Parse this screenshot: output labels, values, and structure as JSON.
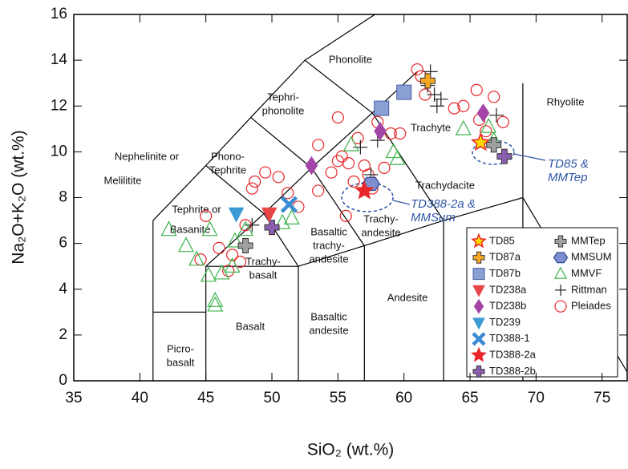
{
  "chart_data": {
    "type": "scatter",
    "xlabel": "SiO₂ (wt.%)",
    "ylabel": "Na₂O+K₂O (wt.%)",
    "xlim": [
      35,
      76.9
    ],
    "ylim": [
      0,
      16
    ],
    "xticks": [
      35,
      40,
      45,
      50,
      55,
      60,
      65,
      70,
      75
    ],
    "yticks": [
      0,
      2,
      4,
      6,
      8,
      10,
      12,
      14,
      16
    ],
    "legend": "lower right",
    "fields": [
      [
        "Phonolite"
      ],
      [
        "Tephri-",
        "phonolite"
      ],
      [
        "Trachyte"
      ],
      [
        "Rhyolite"
      ],
      [
        "Nephelinite or"
      ],
      [
        "Melilitite"
      ],
      [
        "Phono-",
        "Tephrite"
      ],
      [
        "Tephrite or"
      ],
      [
        "Basanite"
      ],
      [
        "Trachydacite"
      ],
      [
        "Basaltic",
        "trachy-",
        "andesite"
      ],
      [
        "Trachy-",
        "basalt"
      ],
      [
        "Trachy-",
        "andesite"
      ],
      [
        "Andesite"
      ],
      [
        "Basalt"
      ],
      [
        "Basaltic",
        "andesite"
      ],
      [
        "Picro-",
        "basalt"
      ]
    ],
    "annotations": [
      [
        "TD85 &",
        "MMTep"
      ],
      [
        "TD388-2a &",
        "MMSum"
      ]
    ],
    "series": [
      {
        "name": "TD85",
        "color": "#e8262a",
        "marker": "star-yellow",
        "x": [
          65.8
        ],
        "y": [
          10.4
        ]
      },
      {
        "name": "TD87a",
        "color": "#f5a623",
        "marker": "plus",
        "x": [
          61.8
        ],
        "y": [
          13.1
        ]
      },
      {
        "name": "TD87b",
        "color": "#8a9fd4",
        "marker": "square",
        "x": [
          58.3,
          60
        ],
        "y": [
          11.9,
          12.6
        ]
      },
      {
        "name": "TD238a",
        "color": "#e8474a",
        "marker": "tri-down",
        "x": [
          49.8
        ],
        "y": [
          7.3
        ]
      },
      {
        "name": "TD238b",
        "color": "#a245a6",
        "marker": "diamond",
        "x": [
          53,
          58.2,
          66
        ],
        "y": [
          9.4,
          10.9,
          11.7
        ]
      },
      {
        "name": "TD239",
        "color": "#3b9ad4",
        "marker": "tri-down",
        "x": [
          47.3
        ],
        "y": [
          7.3
        ]
      },
      {
        "name": "TD388-1",
        "color": "#3b8ad4",
        "marker": "x",
        "x": [
          51.3
        ],
        "y": [
          7.7
        ]
      },
      {
        "name": "TD388-2a",
        "color": "#e8262a",
        "marker": "star",
        "x": [
          57
        ],
        "y": [
          8.3
        ]
      },
      {
        "name": "TD388-2b",
        "color": "#8b5fb0",
        "marker": "plus",
        "x": [
          50,
          67.6
        ],
        "y": [
          6.7,
          9.8
        ]
      },
      {
        "name": "MMTep",
        "color": "#a0a0a0",
        "marker": "plus",
        "x": [
          66.8,
          48
        ],
        "y": [
          10.3,
          5.9
        ]
      },
      {
        "name": "MMSUM",
        "color": "#7d8fd0",
        "marker": "hexagon",
        "x": [
          57.5
        ],
        "y": [
          8.6
        ]
      },
      {
        "name": "MMVF",
        "color": "#3cb44b",
        "marker": "tri-up-open",
        "x": [
          42.2,
          43.5,
          44.3,
          45.3,
          45.7,
          45.7,
          45.2,
          46.2,
          47,
          47.2,
          48,
          50.8,
          51.5,
          56,
          59.2,
          59.5,
          64.5,
          66.4,
          66.8
        ],
        "y": [
          6.6,
          5.9,
          5.3,
          6.6,
          3.5,
          3.3,
          4.6,
          4.7,
          5,
          6.1,
          6.6,
          6.9,
          7.1,
          10.3,
          10,
          9.7,
          11,
          11.1,
          10.5
        ]
      },
      {
        "name": "Rittman",
        "color": "#222222",
        "marker": "thin-plus",
        "x": [
          62,
          62.3,
          62.5,
          61.8,
          62.8,
          67,
          58,
          56.7,
          48.5,
          57.5
        ],
        "y": [
          13.5,
          12.5,
          12,
          12.9,
          12.3,
          11.6,
          10.5,
          10.2,
          6.8,
          9
        ]
      },
      {
        "name": "Pleiades",
        "color": "#e8262a",
        "marker": "circle-open",
        "x": [
          44.6,
          45,
          46,
          46.7,
          47,
          47.6,
          48,
          48.5,
          48.7,
          49.5,
          50.5,
          51.2,
          52,
          53.5,
          54.5,
          55,
          55.3,
          55.8,
          56.2,
          56.5,
          57,
          57.3,
          57.6,
          58,
          58.5,
          59,
          59.7,
          61,
          61.3,
          61.6,
          63.8,
          64.5,
          65.5,
          65.7,
          66.2,
          66.8,
          67.5,
          55,
          53.5,
          55.6
        ],
        "y": [
          5.3,
          7.2,
          5.8,
          4.8,
          5.5,
          5.2,
          6.8,
          8.4,
          8.7,
          9.1,
          8.9,
          8.2,
          7.6,
          10.3,
          9.1,
          9.6,
          9.8,
          9.5,
          8.7,
          10.6,
          9.4,
          9,
          8.4,
          11.3,
          9.3,
          10.8,
          10.8,
          13.6,
          13.3,
          12.5,
          11.9,
          12,
          12.7,
          11.4,
          10.9,
          12.4,
          11.3,
          11.5,
          8.3,
          7.2
        ]
      }
    ]
  }
}
